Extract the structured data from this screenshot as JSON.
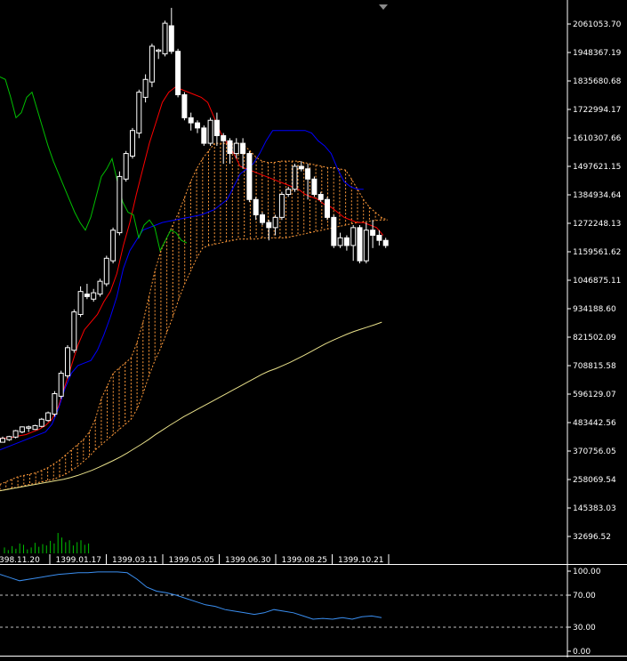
{
  "colors": {
    "background": "#000000",
    "axis": "#ffffff",
    "candle": "#ffffff",
    "kijun": "#ff0000",
    "tenkan_blue": "#0000ff",
    "chikou": "#00c000",
    "ma": "#e8e08a",
    "cloud": "#ff9a3a",
    "volume": "#00c000",
    "oscillator": "#3a8ef0",
    "level_line": "#bfbfbf"
  },
  "chart_data": [
    {
      "type": "candlestick",
      "ylim": [
        -5000,
        2140000
      ],
      "grid": false,
      "y_ticks": [
        "2061053.70",
        "1948367.19",
        "1835680.68",
        "1722994.17",
        "1610307.66",
        "1497621.15",
        "1384934.64",
        "1272248.13",
        "1159561.62",
        "1046875.11",
        "934188.60",
        "821502.09",
        "708815.58",
        "596129.07",
        "483442.56",
        "370756.05",
        "258069.54",
        "145383.03",
        "32696.52"
      ],
      "x_labels": [
        "398.11.20",
        "1399.01.17",
        "1399.03.11",
        "1399.05.05",
        "1399.06.30",
        "1399.08.25",
        "1399.10.21"
      ],
      "candles": [
        [
          430000,
          445000,
          440000,
          452000
        ],
        [
          440000,
          452000,
          435000,
          455000
        ],
        [
          450000,
          475000,
          445000,
          478000
        ],
        [
          470000,
          490000,
          465000,
          492000
        ],
        [
          485000,
          490000,
          470000,
          495000
        ],
        [
          480000,
          495000,
          478000,
          498000
        ],
        [
          492000,
          520000,
          488000,
          525000
        ],
        [
          515000,
          545000,
          510000,
          550000
        ],
        [
          540000,
          620000,
          530000,
          630000
        ],
        [
          610000,
          700000,
          600000,
          710000
        ],
        [
          690000,
          800000,
          680000,
          810000
        ],
        [
          790000,
          940000,
          780000,
          950000
        ],
        [
          930000,
          1020000,
          920000,
          1040000
        ],
        [
          1010000,
          1000000,
          990000,
          1050000
        ],
        [
          990000,
          1015000,
          980000,
          1030000
        ],
        [
          1010000,
          1060000,
          1000000,
          1070000
        ],
        [
          1050000,
          1150000,
          1040000,
          1160000
        ],
        [
          1140000,
          1260000,
          1130000,
          1270000
        ],
        [
          1250000,
          1470000,
          1240000,
          1490000
        ],
        [
          1460000,
          1560000,
          1450000,
          1570000
        ],
        [
          1550000,
          1650000,
          1540000,
          1660000
        ],
        [
          1640000,
          1800000,
          1620000,
          1810000
        ],
        [
          1780000,
          1850000,
          1760000,
          1870000
        ],
        [
          1840000,
          1980000,
          1820000,
          1990000
        ],
        [
          1960000,
          1965000,
          1930000,
          1970000
        ],
        [
          1950000,
          2070000,
          1940000,
          2080000
        ],
        [
          2060000,
          1960000,
          1950000,
          2130000
        ],
        [
          1960000,
          1790000,
          1780000,
          1970000
        ],
        [
          1790000,
          1700000,
          1690000,
          1800000
        ],
        [
          1700000,
          1680000,
          1650000,
          1720000
        ],
        [
          1680000,
          1660000,
          1640000,
          1690000
        ],
        [
          1660000,
          1600000,
          1590000,
          1670000
        ],
        [
          1600000,
          1690000,
          1590000,
          1700000
        ],
        [
          1690000,
          1630000,
          1590000,
          1720000
        ],
        [
          1630000,
          1610000,
          1520000,
          1640000
        ],
        [
          1610000,
          1560000,
          1520000,
          1620000
        ],
        [
          1560000,
          1600000,
          1540000,
          1620000
        ],
        [
          1600000,
          1560000,
          1500000,
          1620000
        ],
        [
          1560000,
          1380000,
          1370000,
          1570000
        ],
        [
          1380000,
          1320000,
          1300000,
          1390000
        ],
        [
          1320000,
          1290000,
          1280000,
          1330000
        ],
        [
          1290000,
          1270000,
          1220000,
          1300000
        ],
        [
          1270000,
          1310000,
          1240000,
          1320000
        ],
        [
          1310000,
          1400000,
          1300000,
          1410000
        ],
        [
          1400000,
          1420000,
          1390000,
          1430000
        ],
        [
          1420000,
          1510000,
          1410000,
          1520000
        ],
        [
          1510000,
          1500000,
          1490000,
          1530000
        ],
        [
          1500000,
          1460000,
          1380000,
          1520000
        ],
        [
          1460000,
          1400000,
          1390000,
          1470000
        ],
        [
          1400000,
          1380000,
          1370000,
          1410000
        ],
        [
          1380000,
          1310000,
          1300000,
          1390000
        ],
        [
          1310000,
          1200000,
          1190000,
          1320000
        ],
        [
          1200000,
          1230000,
          1190000,
          1250000
        ],
        [
          1230000,
          1200000,
          1180000,
          1240000
        ],
        [
          1200000,
          1270000,
          1140000,
          1280000
        ],
        [
          1270000,
          1140000,
          1130000,
          1280000
        ],
        [
          1140000,
          1260000,
          1130000,
          1290000
        ],
        [
          1260000,
          1240000,
          1190000,
          1300000
        ],
        [
          1240000,
          1220000,
          1200000,
          1260000
        ],
        [
          1220000,
          1200000,
          1190000,
          1230000
        ]
      ],
      "series": [
        {
          "values": [
            445000,
            447000,
            450000,
            455000,
            460000,
            470000,
            480000,
            495000,
            520000,
            570000,
            650000,
            730000,
            810000,
            870000,
            900000,
            930000,
            980000,
            1020000,
            1090000,
            1200000,
            1290000,
            1400000,
            1500000,
            1600000,
            1680000,
            1760000,
            1800000,
            1820000,
            1810000,
            1800000,
            1790000,
            1780000,
            1760000,
            1700000,
            1640000,
            1600000,
            1560000,
            1510000,
            1500000,
            1490000,
            1480000,
            1470000,
            1460000,
            1450000,
            1440000,
            1430000,
            1420000,
            1400000,
            1390000,
            1380000,
            1360000,
            1350000,
            1330000,
            1310000,
            1300000,
            1290000,
            1290000,
            1280000,
            1270000,
            1240000
          ]
        },
        {
          "values": [
            400000,
            410000,
            420000,
            430000,
            440000,
            450000,
            460000,
            470000,
            500000,
            560000,
            640000,
            700000,
            730000,
            740000,
            750000,
            790000,
            850000,
            920000,
            1000000,
            1110000,
            1180000,
            1220000,
            1260000,
            1270000,
            1280000,
            1290000,
            1295000,
            1300000,
            1305000,
            1310000,
            1315000,
            1320000,
            1330000,
            1340000,
            1360000,
            1380000,
            1430000,
            1480000,
            1500000,
            1520000,
            1560000,
            1610000,
            1650000,
            1650000,
            1650000,
            1650000,
            1650000,
            1650000,
            1640000,
            1610000,
            1590000,
            1560000,
            1500000,
            1450000,
            1430000,
            1420000,
            1420000
          ]
        },
        {
          "values": [
            1860000,
            1850000,
            1780000,
            1700000,
            1720000,
            1780000,
            1800000,
            1730000,
            1660000,
            1590000,
            1530000,
            1480000,
            1430000,
            1380000,
            1330000,
            1290000,
            1260000,
            1310000,
            1390000,
            1470000,
            1500000,
            1540000,
            1450000,
            1370000,
            1330000,
            1320000,
            1230000,
            1280000,
            1300000,
            1270000,
            1180000,
            1220000,
            1260000,
            1250000,
            1220000,
            1210000
          ]
        },
        {
          "values": [
            240000,
            245000,
            250000,
            255000,
            260000,
            265000,
            270000,
            275000,
            280000,
            285000,
            292000,
            300000,
            310000,
            320000,
            332000,
            345000,
            358000,
            372000,
            388000,
            405000,
            422000,
            440000,
            460000,
            478000,
            496000,
            513000,
            530000,
            545000,
            560000,
            575000,
            590000,
            605000,
            620000,
            635000,
            650000,
            665000,
            680000,
            695000,
            708000,
            718000,
            730000,
            742000,
            756000,
            770000,
            785000,
            800000,
            815000,
            828000,
            840000,
            852000,
            863000,
            872000,
            881000,
            890000,
            900000
          ]
        }
      ],
      "cloud": {
        "a": [
          265000,
          275000,
          285000,
          295000,
          300000,
          305000,
          310000,
          320000,
          330000,
          345000,
          360000,
          380000,
          400000,
          420000,
          440000,
          470000,
          520000,
          600000,
          650000,
          700000,
          720000,
          740000,
          760000,
          820000,
          900000,
          1000000,
          1100000,
          1180000,
          1230000,
          1280000,
          1330000,
          1390000,
          1450000,
          1500000,
          1540000,
          1570000,
          1600000,
          1600000,
          1600000,
          1600000,
          1600000,
          1590000,
          1570000,
          1545000,
          1530000,
          1525000,
          1525000,
          1530000,
          1530000,
          1530000,
          1530000,
          1525000,
          1520000,
          1515000,
          1510000,
          1505000,
          1505000,
          1500000,
          1495000,
          1460000,
          1420000,
          1380000,
          1350000,
          1330000,
          1310000,
          1300000
        ],
        "b": [
          240000,
          245000,
          250000,
          255000,
          260000,
          265000,
          270000,
          275000,
          280000,
          285000,
          295000,
          305000,
          320000,
          335000,
          355000,
          375000,
          400000,
          420000,
          440000,
          460000,
          480000,
          500000,
          520000,
          560000,
          620000,
          690000,
          750000,
          800000,
          860000,
          920000,
          990000,
          1050000,
          1100000,
          1150000,
          1190000,
          1200000,
          1205000,
          1210000,
          1215000,
          1220000,
          1225000,
          1225000,
          1225000,
          1225000,
          1230000,
          1230000,
          1230000,
          1230000,
          1230000,
          1235000,
          1240000,
          1245000,
          1250000,
          1255000,
          1260000,
          1265000,
          1270000,
          1275000,
          1280000,
          1285000,
          1290000,
          1292000,
          1295000,
          1298000,
          1300000,
          1300000
        ]
      },
      "volume": {
        "ylim": [
          0,
          100
        ],
        "values": [
          18,
          10,
          22,
          14,
          30,
          26,
          12,
          18,
          32,
          20,
          28,
          24,
          38,
          30,
          62,
          48,
          34,
          40,
          24,
          34,
          40,
          26,
          30
        ]
      }
    },
    {
      "type": "line",
      "ylim": [
        0,
        100
      ],
      "y_ticks": [
        "100.00",
        "70.00",
        "30.00",
        "0.00"
      ],
      "levels": [
        70,
        30
      ],
      "values": [
        96,
        92,
        88,
        90,
        92,
        94,
        96,
        97,
        98,
        98,
        99,
        99,
        99,
        98,
        90,
        80,
        75,
        73,
        70,
        66,
        62,
        58,
        56,
        52,
        50,
        48,
        46,
        48,
        52,
        50,
        48,
        44,
        40,
        41,
        40,
        42,
        40,
        43,
        44,
        42
      ]
    }
  ]
}
